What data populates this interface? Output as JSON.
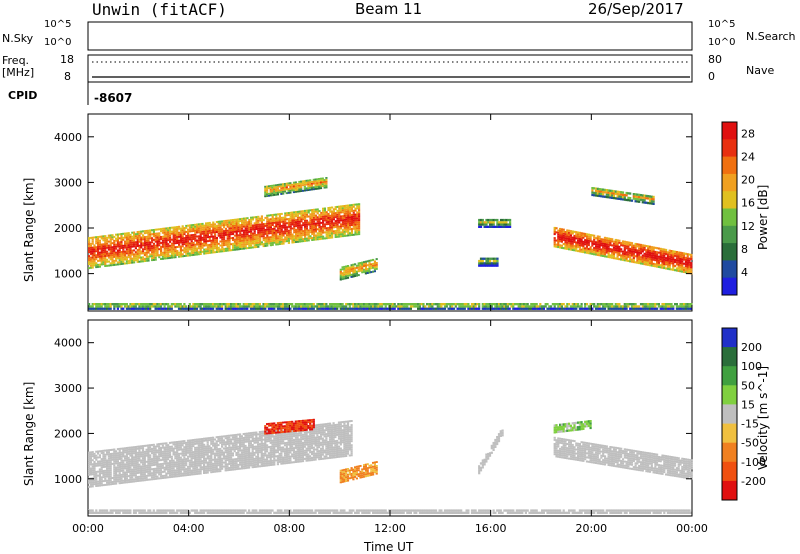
{
  "header": {
    "title_left": "Unwin (fitACF)",
    "title_mid": "Beam 11",
    "title_right": "26/Sep/2017"
  },
  "info_panels": {
    "nsky_label": "N.Sky",
    "nsky_ticks": [
      "10^5",
      "10^0"
    ],
    "nsearch_label": "N.Search",
    "freq_label_1": "Freq.",
    "freq_label_2": "[MHz]",
    "freq_ticks": [
      "18",
      "8"
    ],
    "nave_label": "Nave",
    "nave_ticks": [
      "80",
      "0"
    ],
    "cpid_label": "CPID",
    "cpid_value": "-8607"
  },
  "colors": {
    "power": [
      "#1f1fe0",
      "#1f4aa0",
      "#2a6e3a",
      "#4a9a4a",
      "#70c040",
      "#e0c020",
      "#f0a020",
      "#f07010",
      "#e83010",
      "#e01010"
    ],
    "velocity": [
      "#2030c8",
      "#2a6e3a",
      "#40a040",
      "#80d040",
      "#bfbfbf",
      "#f0c040",
      "#f08020",
      "#f05010",
      "#e01010"
    ],
    "ground_scatter": "#bfbfbf"
  },
  "chart_data": [
    {
      "type": "heatmap",
      "name": "power",
      "ylabel": "Slant Range [km]",
      "xlabel": "",
      "x_ticks": [
        "00:00",
        "04:00",
        "08:00",
        "12:00",
        "16:00",
        "20:00",
        "00:00"
      ],
      "y_ticks": [
        1000,
        2000,
        3000,
        4000
      ],
      "x_range_hours": [
        0,
        24
      ],
      "ylim": [
        180,
        4500
      ],
      "colorbar_label": "Power [dB]",
      "colorbar_ticks": [
        4,
        8,
        12,
        16,
        20,
        24,
        28
      ],
      "colorbar_range": [
        0,
        30
      ],
      "regions": [
        {
          "t0": 0.0,
          "t1": 10.8,
          "r_start": 1450,
          "r_end": 2200,
          "width": 700,
          "val": 20
        },
        {
          "t0": 10.0,
          "t1": 11.5,
          "r_start": 1000,
          "r_end": 1200,
          "width": 300,
          "val": 14
        },
        {
          "t0": 7.0,
          "t1": 9.5,
          "r_start": 2800,
          "r_end": 3000,
          "width": 250,
          "val": 14
        },
        {
          "t0": 15.5,
          "t1": 16.3,
          "r_start": 1250,
          "r_end": 1250,
          "width": 200,
          "val": 6
        },
        {
          "t0": 15.5,
          "t1": 16.8,
          "r_start": 2100,
          "r_end": 2100,
          "width": 200,
          "val": 8
        },
        {
          "t0": 18.5,
          "t1": 24.0,
          "r_start": 1800,
          "r_end": 1200,
          "width": 450,
          "val": 22
        },
        {
          "t0": 20.0,
          "t1": 22.5,
          "r_start": 2800,
          "r_end": 2600,
          "width": 200,
          "val": 12
        },
        {
          "t0": 0.0,
          "t1": 24.0,
          "r_start": 280,
          "r_end": 280,
          "width": 150,
          "val": 10
        }
      ]
    },
    {
      "type": "heatmap",
      "name": "velocity",
      "ylabel": "Slant Range [km]",
      "xlabel": "Time UT",
      "x_ticks": [
        "00:00",
        "04:00",
        "08:00",
        "12:00",
        "16:00",
        "20:00",
        "00:00"
      ],
      "y_ticks": [
        1000,
        2000,
        3000,
        4000
      ],
      "x_range_hours": [
        0,
        24
      ],
      "ylim": [
        180,
        4500
      ],
      "colorbar_label": "Velocity [m s^-1]",
      "colorbar_ticks": [
        200,
        100,
        50,
        15,
        -15,
        -50,
        -100,
        -200
      ],
      "colorbar_range": [
        -250,
        250
      ],
      "regions": [
        {
          "t0": 0.0,
          "t1": 10.5,
          "r_start": 1200,
          "r_end": 1900,
          "width": 800,
          "val": 0
        },
        {
          "t0": 10.0,
          "t1": 11.5,
          "r_start": 1050,
          "r_end": 1250,
          "width": 300,
          "val": -60
        },
        {
          "t0": 7.0,
          "t1": 9.0,
          "r_start": 2100,
          "r_end": 2200,
          "width": 250,
          "val": -200
        },
        {
          "t0": 15.5,
          "t1": 16.5,
          "r_start": 1200,
          "r_end": 2100,
          "width": 200,
          "val": 0
        },
        {
          "t0": 18.5,
          "t1": 24.0,
          "r_start": 1700,
          "r_end": 1200,
          "width": 450,
          "val": 0
        },
        {
          "t0": 18.5,
          "t1": 20.0,
          "r_start": 2100,
          "r_end": 2200,
          "width": 200,
          "val": 30
        },
        {
          "t0": 0.0,
          "t1": 24.0,
          "r_start": 250,
          "r_end": 250,
          "width": 150,
          "val": 0
        }
      ]
    }
  ]
}
